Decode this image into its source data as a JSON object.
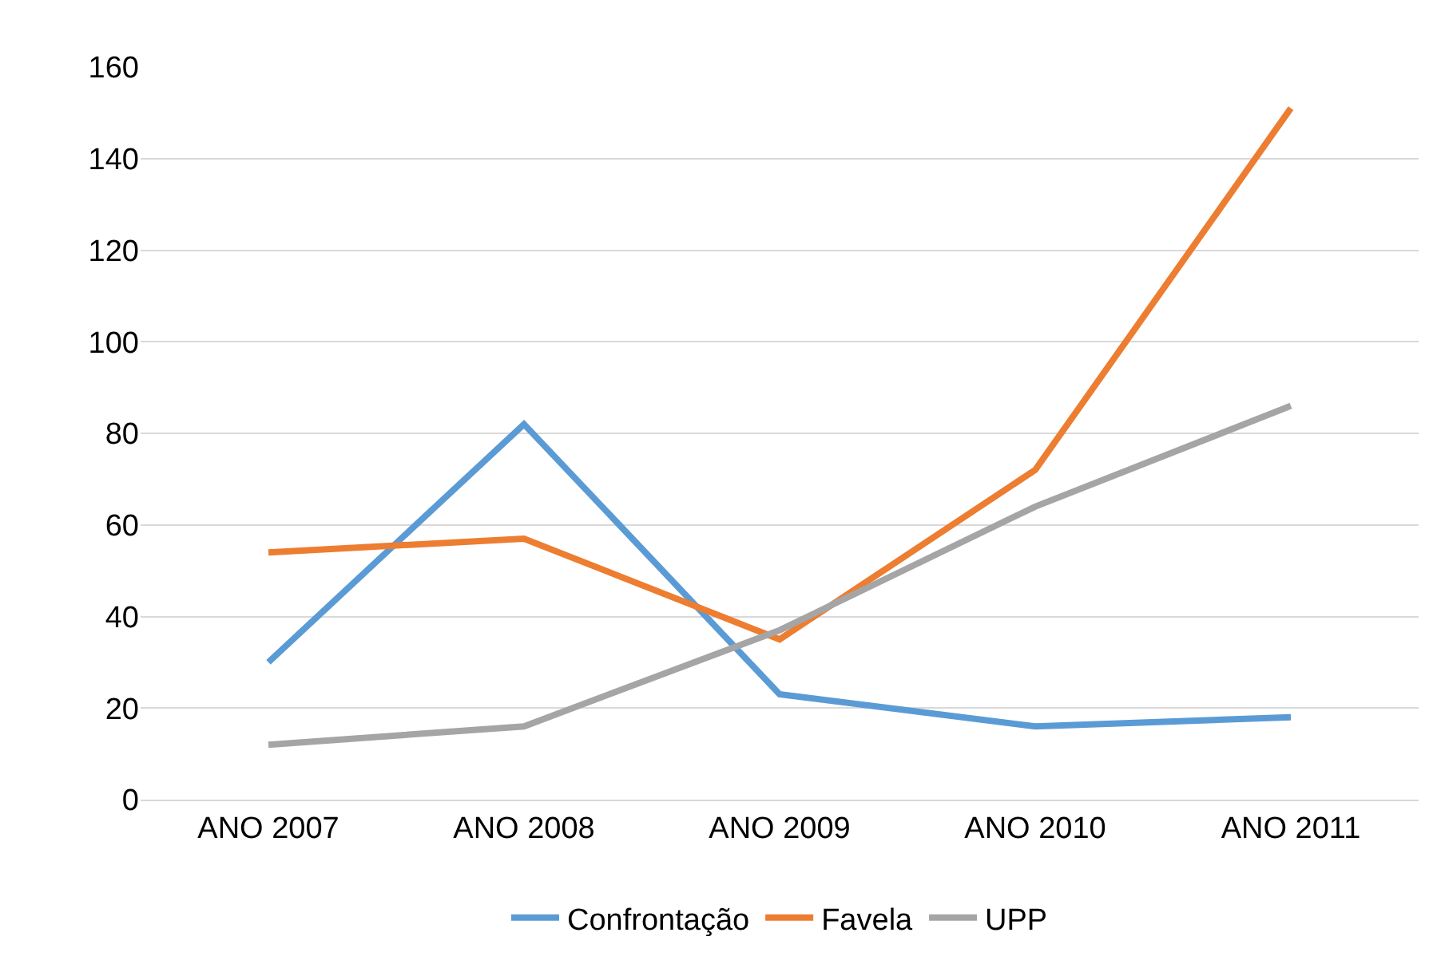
{
  "chart_data": {
    "type": "line",
    "categories": [
      "ANO 2007",
      "ANO 2008",
      "ANO 2009",
      "ANO 2010",
      "ANO 2011"
    ],
    "series": [
      {
        "name": "Confrontação",
        "color": "#5b9bd5",
        "values": [
          30,
          82,
          23,
          16,
          18
        ]
      },
      {
        "name": "Favela",
        "color": "#ed7d31",
        "values": [
          54,
          57,
          35,
          72,
          151
        ]
      },
      {
        "name": "UPP",
        "color": "#a5a5a5",
        "values": [
          12,
          16,
          37,
          64,
          86
        ]
      }
    ],
    "ylim": [
      0,
      160
    ],
    "yticks": [
      0,
      20,
      40,
      60,
      80,
      100,
      120,
      140,
      160
    ],
    "grid": "y",
    "legend": "bottom",
    "marker": "none",
    "line_style": "solid"
  }
}
